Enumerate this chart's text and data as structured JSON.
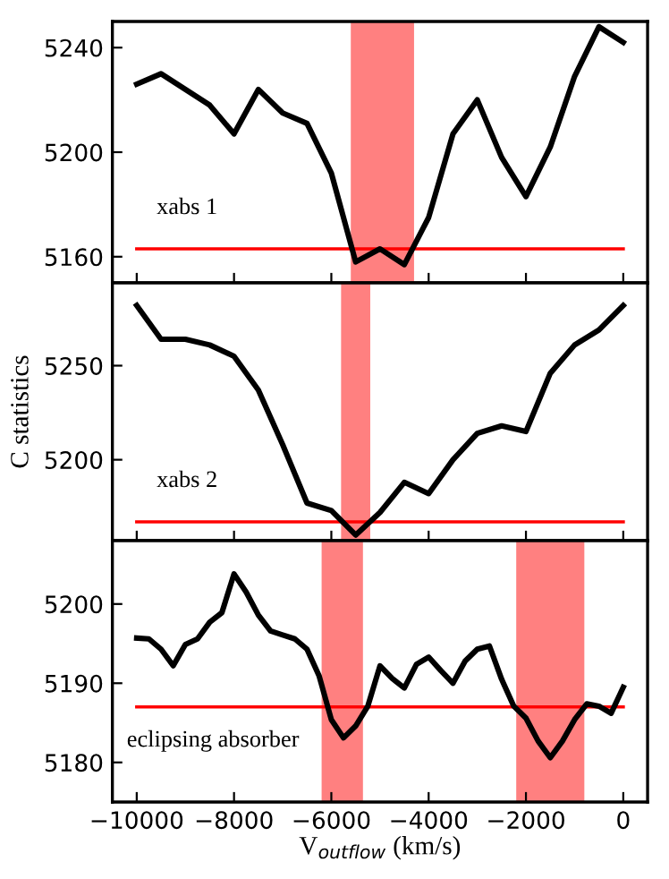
{
  "chart_data": [
    {
      "type": "line",
      "x": [
        -10000,
        -9500,
        -9000,
        -8500,
        -8000,
        -7500,
        -7000,
        -6500,
        -6000,
        -5500,
        -5000,
        -4500,
        -4000,
        -3500,
        -3000,
        -2500,
        -2000,
        -1500,
        -1000,
        -500,
        0
      ],
      "series": [
        {
          "color": "#000000",
          "values": [
            5226,
            5230,
            5224,
            5218,
            5207,
            5224,
            5215,
            5211,
            5192,
            5158,
            5163,
            5157,
            5175,
            5207,
            5220,
            5198,
            5183,
            5202,
            5229,
            5248,
            5242
          ]
        }
      ],
      "xlim": [
        -10500,
        500
      ],
      "ylim": [
        5150,
        5250
      ],
      "xticks": [
        -10000,
        -8000,
        -6000,
        -4000,
        -2000,
        0
      ],
      "yticks": [
        5160,
        5200,
        5240
      ],
      "tick_labels": "y",
      "ref_lines": [
        {
          "axis": "y",
          "value": 5163,
          "label": "xabs 1",
          "color": "#ff0000"
        }
      ],
      "bands": [
        {
          "axis": "x",
          "from": -5600,
          "to": -4300,
          "color": "#ff8080"
        }
      ],
      "grid": false,
      "legend": false
    },
    {
      "type": "line",
      "x": [
        -10000,
        -9500,
        -9000,
        -8500,
        -8000,
        -7500,
        -7000,
        -6500,
        -6000,
        -5500,
        -5000,
        -4500,
        -4000,
        -3500,
        -3000,
        -2500,
        -2000,
        -1500,
        -1000,
        -500,
        0
      ],
      "series": [
        {
          "color": "#000000",
          "values": [
            5282,
            5264,
            5264,
            5261,
            5255,
            5237,
            5208,
            5177,
            5173,
            5160,
            5172,
            5188,
            5182,
            5200,
            5214,
            5218,
            5215,
            5246,
            5261,
            5269,
            5282
          ]
        }
      ],
      "ylabel": "C statistics",
      "xlim": [
        -10500,
        500
      ],
      "ylim": [
        5157,
        5294
      ],
      "xticks": [
        -10000,
        -8000,
        -6000,
        -4000,
        -2000,
        0
      ],
      "yticks": [
        5200,
        5250
      ],
      "tick_labels": "y",
      "ref_lines": [
        {
          "axis": "y",
          "value": 5167,
          "label": "xabs 2",
          "color": "#ff0000"
        }
      ],
      "bands": [
        {
          "axis": "x",
          "from": -5800,
          "to": -5200,
          "color": "#ff8080"
        }
      ],
      "grid": false,
      "legend": false
    },
    {
      "type": "line",
      "x": [
        -10000,
        -9750,
        -9500,
        -9250,
        -9000,
        -8750,
        -8500,
        -8250,
        -8000,
        -7750,
        -7500,
        -7250,
        -7000,
        -6750,
        -6500,
        -6250,
        -6000,
        -5750,
        -5500,
        -5250,
        -5000,
        -4750,
        -4500,
        -4250,
        -4000,
        -3750,
        -3500,
        -3250,
        -3000,
        -2750,
        -2500,
        -2250,
        -2000,
        -1750,
        -1500,
        -1250,
        -1000,
        -750,
        -500,
        -250,
        0
      ],
      "series": [
        {
          "color": "#000000",
          "values": [
            5195.7,
            5195.6,
            5194.3,
            5192.2,
            5194.9,
            5195.6,
            5197.7,
            5198.9,
            5203.8,
            5201.5,
            5198.6,
            5196.6,
            5196.1,
            5195.6,
            5194.3,
            5190.9,
            5185.4,
            5183.1,
            5184.6,
            5187.1,
            5192.2,
            5190.6,
            5189.4,
            5192.4,
            5193.3,
            5191.6,
            5190.0,
            5192.8,
            5194.3,
            5194.7,
            5190.5,
            5187.1,
            5185.6,
            5182.7,
            5180.6,
            5182.7,
            5185.4,
            5187.4,
            5187.1,
            5186.2,
            5189.5
          ]
        }
      ],
      "xlabel": "V$_{outflow}$ (km/s)",
      "xlim": [
        -10500,
        500
      ],
      "ylim": [
        5175,
        5208
      ],
      "xticks": [
        {
          "value": -10000,
          "label": "−10000"
        },
        {
          "value": -8000,
          "label": "−8000"
        },
        {
          "value": -6000,
          "label": "−6000"
        },
        {
          "value": -4000,
          "label": "−4000"
        },
        {
          "value": -2000,
          "label": "−2000"
        },
        0
      ],
      "yticks": [
        5180,
        5190,
        5200
      ],
      "ref_lines": [
        {
          "axis": "y",
          "value": 5187,
          "label": "eclipsing absorber",
          "color": "#ff0000"
        }
      ],
      "bands": [
        {
          "axis": "x",
          "from": -6200,
          "to": -5350,
          "color": "#ff8080"
        },
        {
          "axis": "x",
          "from": -2200,
          "to": -800,
          "color": "#ff8080"
        }
      ],
      "grid": false,
      "legend": false
    }
  ]
}
